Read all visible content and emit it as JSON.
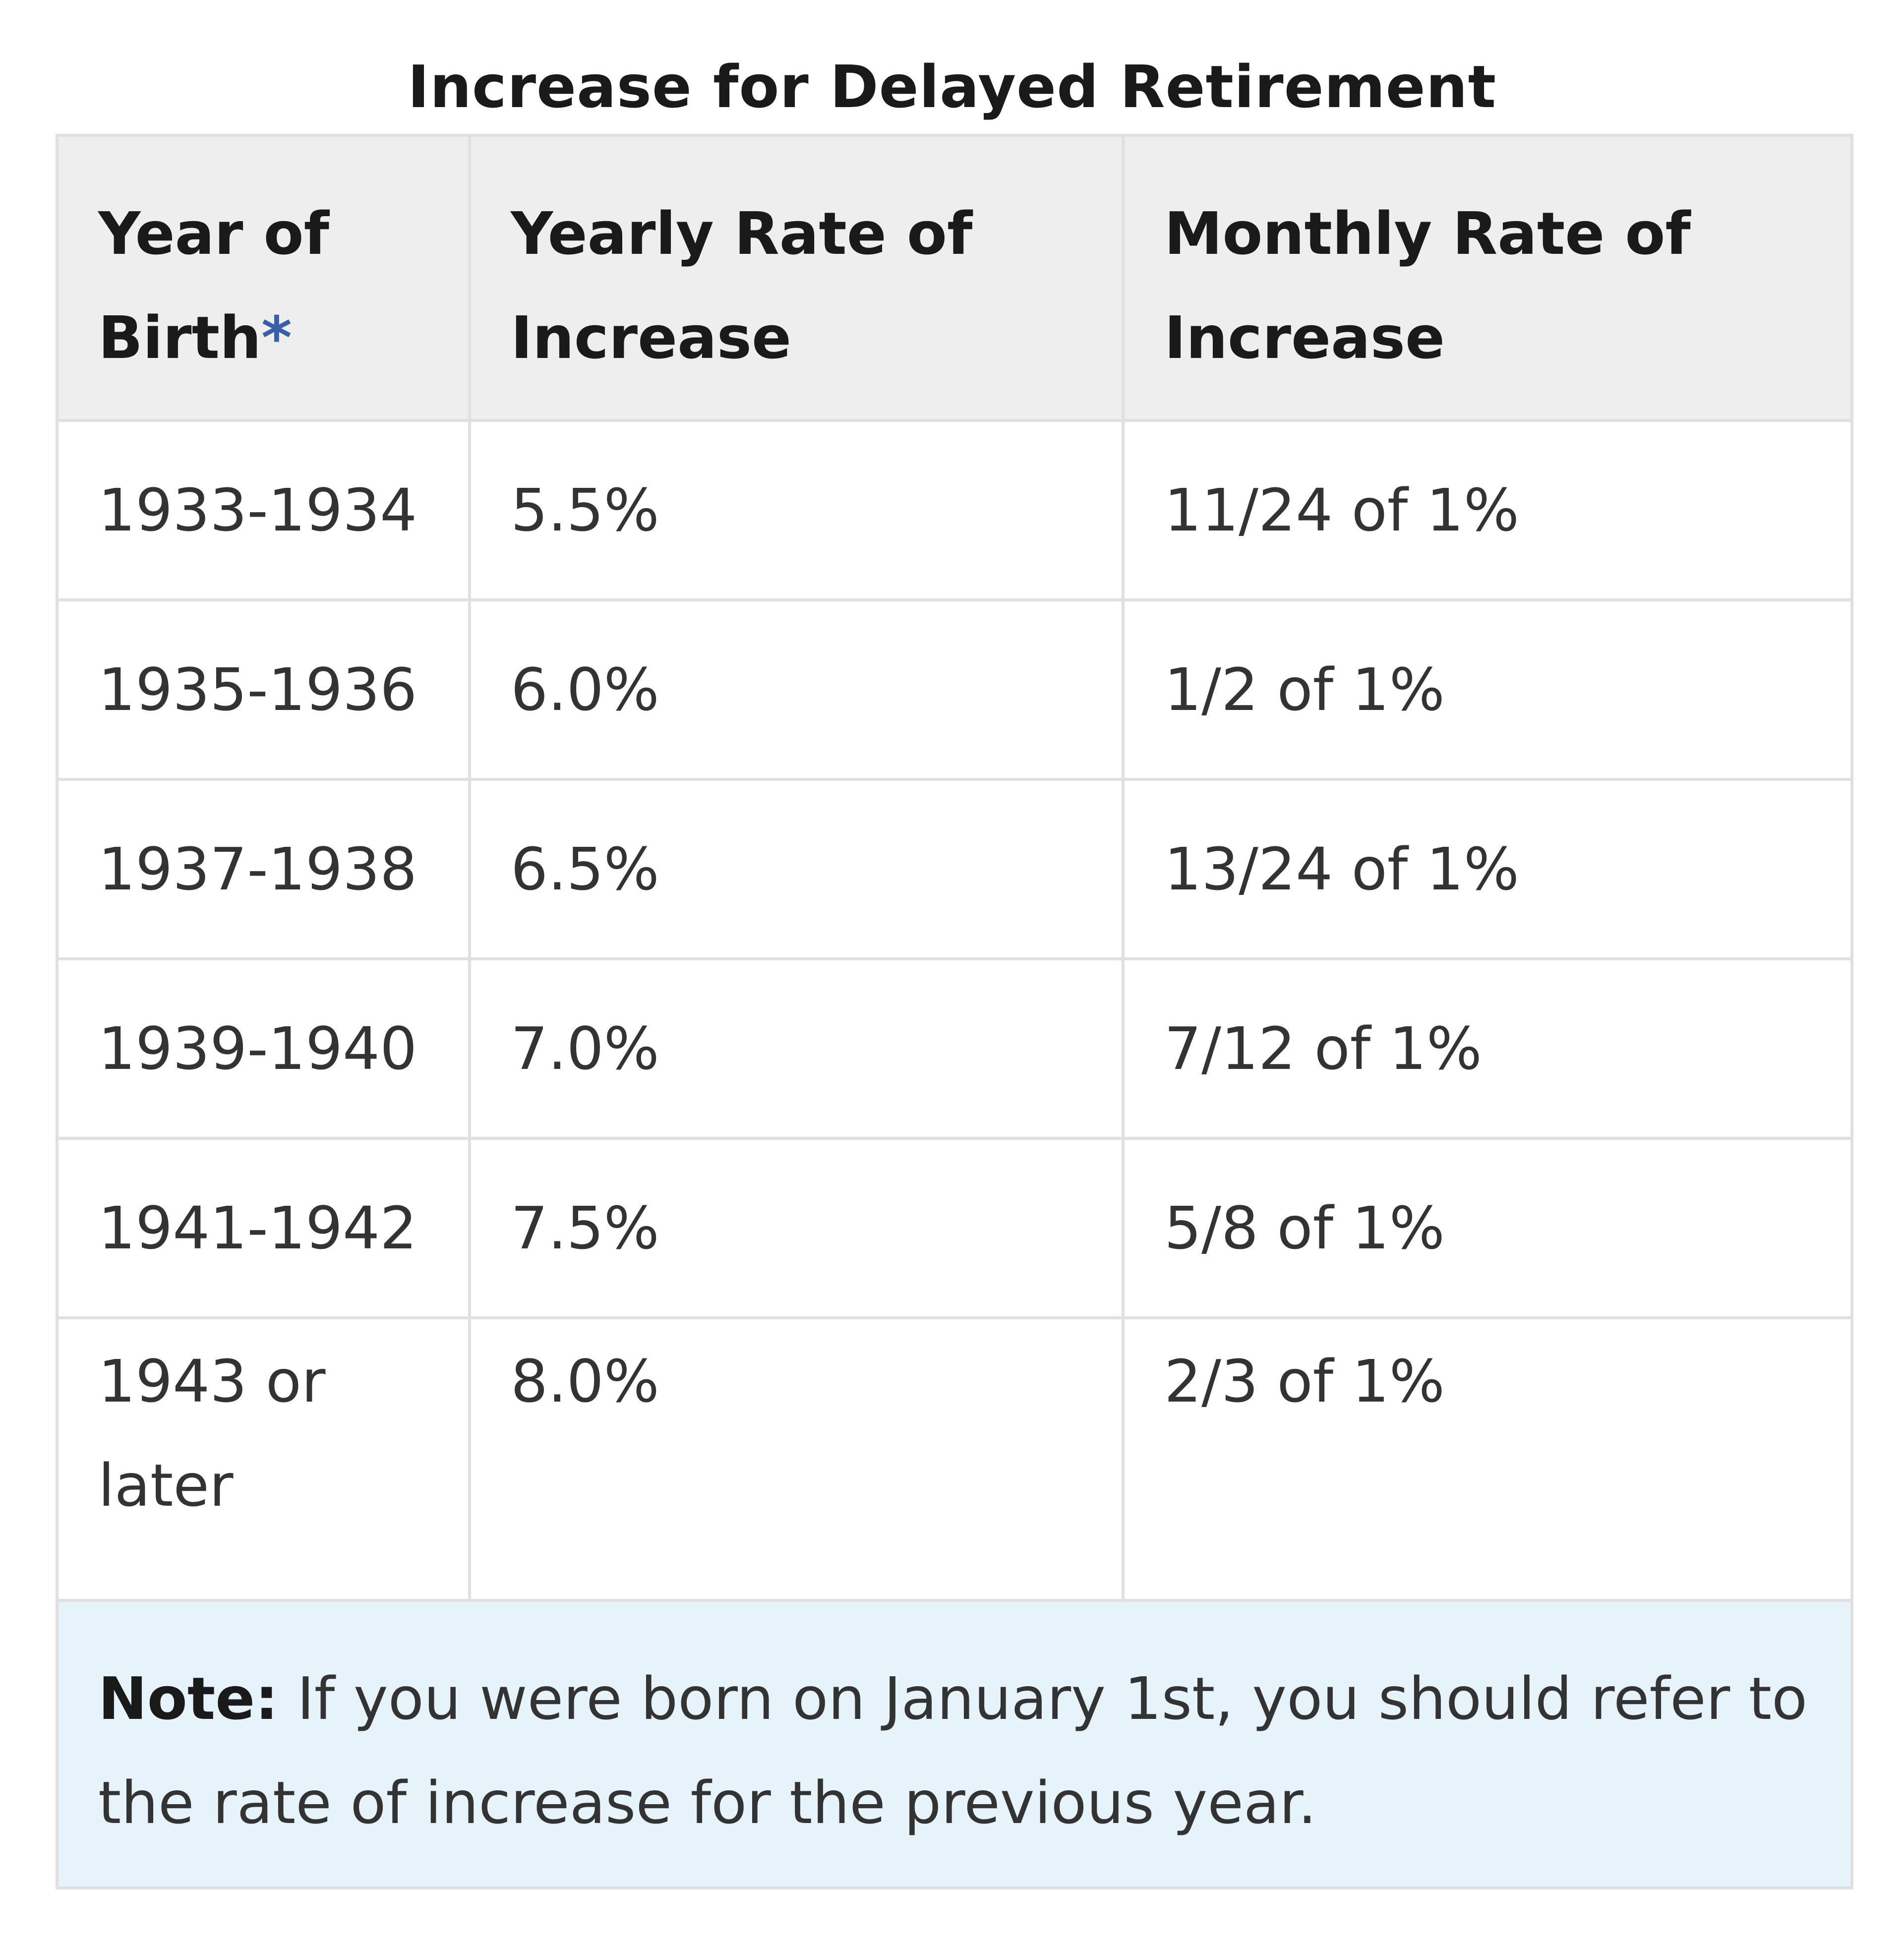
{
  "caption": "Increase for Delayed Retirement",
  "headers": {
    "year_of_birth": "Year of Birth",
    "asterisk": "*",
    "yearly_rate": "Yearly Rate of Increase",
    "monthly_rate": "Monthly Rate of Increase"
  },
  "rows": [
    {
      "year": "1933-1934",
      "yearly": "5.5%",
      "monthly": "11/24 of 1%"
    },
    {
      "year": "1935-1936",
      "yearly": "6.0%",
      "monthly": "1/2 of 1%"
    },
    {
      "year": "1937-1938",
      "yearly": "6.5%",
      "monthly": "13/24 of 1%"
    },
    {
      "year": "1939-1940",
      "yearly": "7.0%",
      "monthly": "7/12 of 1%"
    },
    {
      "year": "1941-1942",
      "yearly": "7.5%",
      "monthly": "5/8 of 1%"
    },
    {
      "year": "1943 or later",
      "yearly": "8.0%",
      "monthly": "2/3 of 1%"
    }
  ],
  "note": {
    "label": "Note:",
    "text": " If you were born on January 1st, you should refer to the rate of increase for the previous year."
  }
}
